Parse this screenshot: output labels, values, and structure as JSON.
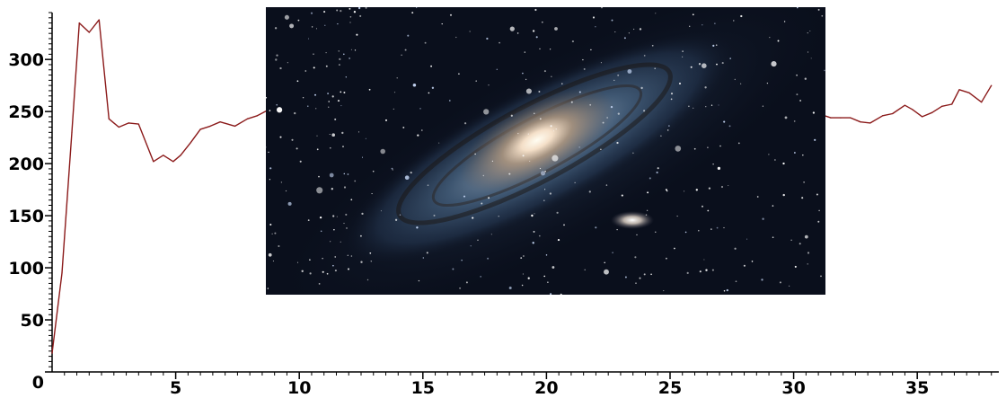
{
  "chart_data": {
    "type": "line",
    "title": "",
    "xlabel": "",
    "ylabel": "",
    "xlim": [
      0,
      38.3
    ],
    "ylim": [
      0,
      345
    ],
    "grid": false,
    "xticks": [
      5,
      10,
      15,
      20,
      25,
      30,
      35
    ],
    "yticks": [
      0,
      50,
      100,
      150,
      200,
      250,
      300
    ],
    "line_color": "#8b1a1a",
    "top_left_fragment": "",
    "series": [
      {
        "name": "",
        "x": [
          0,
          0.4,
          0.8,
          1.1,
          1.5,
          1.9,
          2.3,
          2.7,
          3.1,
          3.5,
          4.1,
          4.5,
          4.9,
          5.2,
          5.6,
          6.0,
          6.4,
          6.8,
          7.4,
          7.9,
          8.3,
          8.7,
          31.0,
          31.5,
          31.9,
          32.3,
          32.7,
          33.1,
          33.6,
          34.0,
          34.5,
          34.8,
          35.2,
          35.6,
          36.0,
          36.4,
          36.7,
          37.1,
          37.6,
          38.0
        ],
        "y": [
          18,
          95,
          230,
          335,
          326,
          338,
          243,
          235,
          239,
          238,
          202,
          208,
          202,
          208,
          220,
          233,
          236,
          240,
          236,
          243,
          246,
          251,
          248,
          244,
          244,
          244,
          240,
          239,
          246,
          248,
          256,
          252,
          245,
          249,
          255,
          257,
          271,
          268,
          259,
          275
        ]
      }
    ]
  },
  "overlay_image": {
    "subject": "spiral galaxy photo",
    "background_color": "#0a0f1c"
  }
}
